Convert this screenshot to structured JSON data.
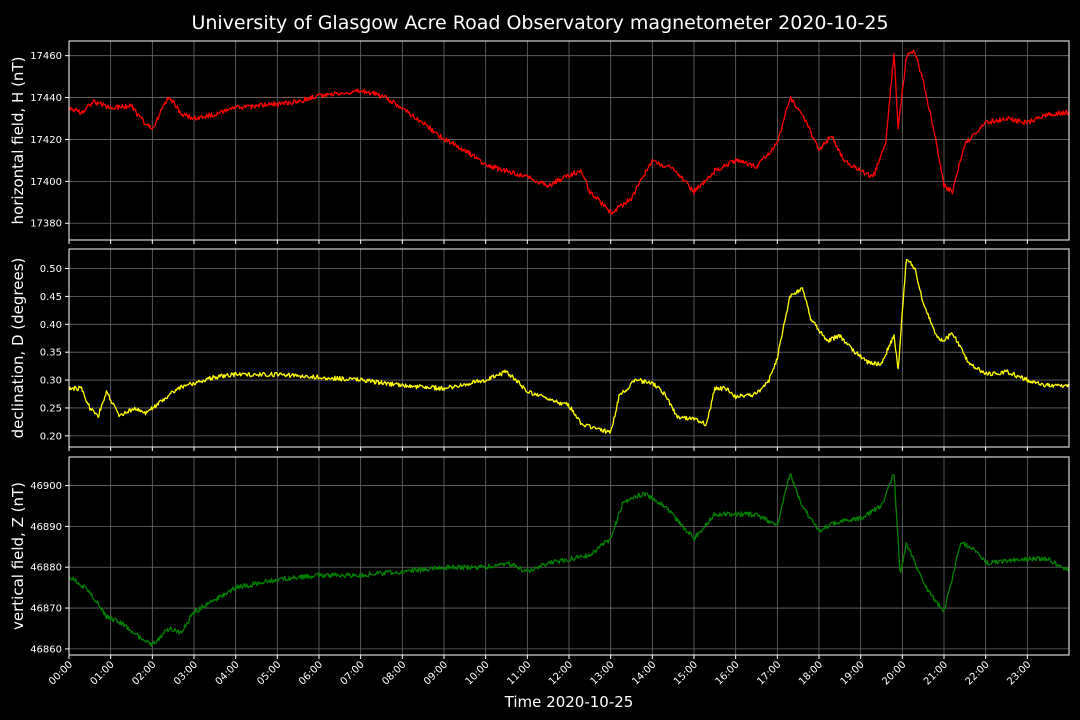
{
  "chart_data": {
    "type": "line",
    "title": "University of Glasgow Acre Road Observatory magnetometer 2020-10-25",
    "xlabel": "Time 2020-10-25",
    "x_ticks": [
      "00:00",
      "01:00",
      "02:00",
      "03:00",
      "04:00",
      "05:00",
      "06:00",
      "07:00",
      "08:00",
      "09:00",
      "10:00",
      "11:00",
      "12:00",
      "13:00",
      "14:00",
      "15:00",
      "16:00",
      "17:00",
      "18:00",
      "19:00",
      "20:00",
      "21:00",
      "22:00",
      "23:00"
    ],
    "xlim": [
      0,
      24
    ],
    "grid": true,
    "panels": [
      {
        "ylabel": "horizontal field, H (nT)",
        "color": "#ff0000",
        "ylim": [
          17372,
          17467
        ],
        "y_ticks": [
          17380,
          17400,
          17420,
          17440,
          17460
        ],
        "decimals": 0,
        "noise": 1.2,
        "points": [
          [
            0,
            17435
          ],
          [
            0.3,
            17433
          ],
          [
            0.6,
            17438
          ],
          [
            1,
            17435
          ],
          [
            1.5,
            17436
          ],
          [
            1.8,
            17428
          ],
          [
            2,
            17425
          ],
          [
            2.2,
            17433
          ],
          [
            2.4,
            17441
          ],
          [
            2.7,
            17432
          ],
          [
            3,
            17430
          ],
          [
            3.5,
            17432
          ],
          [
            4,
            17435
          ],
          [
            5,
            17437
          ],
          [
            5.5,
            17438
          ],
          [
            6,
            17441
          ],
          [
            6.5,
            17442
          ],
          [
            7,
            17443
          ],
          [
            7.3,
            17442
          ],
          [
            7.6,
            17440
          ],
          [
            8,
            17435
          ],
          [
            8.5,
            17428
          ],
          [
            9,
            17420
          ],
          [
            9.5,
            17415
          ],
          [
            10,
            17408
          ],
          [
            10.5,
            17405
          ],
          [
            11,
            17402
          ],
          [
            11.5,
            17398
          ],
          [
            12,
            17403
          ],
          [
            12.3,
            17405
          ],
          [
            12.5,
            17395
          ],
          [
            13,
            17385
          ],
          [
            13.5,
            17392
          ],
          [
            14,
            17410
          ],
          [
            14.5,
            17406
          ],
          [
            15,
            17395
          ],
          [
            15.5,
            17405
          ],
          [
            16,
            17410
          ],
          [
            16.5,
            17407
          ],
          [
            17,
            17418
          ],
          [
            17.3,
            17440
          ],
          [
            17.6,
            17432
          ],
          [
            18,
            17415
          ],
          [
            18.3,
            17422
          ],
          [
            18.6,
            17410
          ],
          [
            19,
            17405
          ],
          [
            19.3,
            17402
          ],
          [
            19.6,
            17418
          ],
          [
            19.8,
            17461
          ],
          [
            19.9,
            17425
          ],
          [
            20.1,
            17460
          ],
          [
            20.3,
            17462
          ],
          [
            20.5,
            17448
          ],
          [
            20.8,
            17420
          ],
          [
            21,
            17398
          ],
          [
            21.2,
            17395
          ],
          [
            21.5,
            17418
          ],
          [
            22,
            17428
          ],
          [
            22.5,
            17430
          ],
          [
            23,
            17428
          ],
          [
            23.5,
            17432
          ],
          [
            24,
            17433
          ]
        ]
      },
      {
        "ylabel": "declination, D (degrees)",
        "color": "#ffff00",
        "ylim": [
          0.18,
          0.535
        ],
        "y_ticks": [
          0.2,
          0.25,
          0.3,
          0.35,
          0.4,
          0.45,
          0.5
        ],
        "decimals": 2,
        "noise": 0.004,
        "points": [
          [
            0,
            0.285
          ],
          [
            0.3,
            0.285
          ],
          [
            0.5,
            0.25
          ],
          [
            0.7,
            0.235
          ],
          [
            0.9,
            0.28
          ],
          [
            1.2,
            0.235
          ],
          [
            1.6,
            0.25
          ],
          [
            1.8,
            0.24
          ],
          [
            2.2,
            0.26
          ],
          [
            2.6,
            0.285
          ],
          [
            3,
            0.295
          ],
          [
            3.5,
            0.305
          ],
          [
            4,
            0.31
          ],
          [
            5,
            0.31
          ],
          [
            6,
            0.305
          ],
          [
            7,
            0.3
          ],
          [
            8,
            0.29
          ],
          [
            9,
            0.285
          ],
          [
            10,
            0.3
          ],
          [
            10.5,
            0.315
          ],
          [
            11,
            0.28
          ],
          [
            11.5,
            0.265
          ],
          [
            12,
            0.255
          ],
          [
            12.3,
            0.22
          ],
          [
            12.8,
            0.21
          ],
          [
            13,
            0.205
          ],
          [
            13.2,
            0.27
          ],
          [
            13.6,
            0.3
          ],
          [
            14,
            0.295
          ],
          [
            14.3,
            0.275
          ],
          [
            14.6,
            0.235
          ],
          [
            15,
            0.23
          ],
          [
            15.3,
            0.22
          ],
          [
            15.5,
            0.285
          ],
          [
            15.8,
            0.285
          ],
          [
            16,
            0.27
          ],
          [
            16.5,
            0.275
          ],
          [
            16.8,
            0.3
          ],
          [
            17,
            0.34
          ],
          [
            17.3,
            0.45
          ],
          [
            17.6,
            0.465
          ],
          [
            17.8,
            0.41
          ],
          [
            18.2,
            0.37
          ],
          [
            18.5,
            0.38
          ],
          [
            18.8,
            0.355
          ],
          [
            19.2,
            0.33
          ],
          [
            19.5,
            0.33
          ],
          [
            19.8,
            0.38
          ],
          [
            19.9,
            0.32
          ],
          [
            20.1,
            0.52
          ],
          [
            20.3,
            0.5
          ],
          [
            20.5,
            0.44
          ],
          [
            20.8,
            0.38
          ],
          [
            21,
            0.37
          ],
          [
            21.2,
            0.385
          ],
          [
            21.6,
            0.33
          ],
          [
            22,
            0.31
          ],
          [
            22.5,
            0.315
          ],
          [
            23,
            0.3
          ],
          [
            23.5,
            0.29
          ],
          [
            24,
            0.29
          ]
        ]
      },
      {
        "ylabel": "vertical field, Z (nT)",
        "color": "#008000",
        "ylim": [
          46858.5,
          46907
        ],
        "y_ticks": [
          46860,
          46870,
          46880,
          46890,
          46900
        ],
        "decimals": 0,
        "noise": 0.6,
        "points": [
          [
            0,
            46878
          ],
          [
            0.5,
            46874
          ],
          [
            0.9,
            46868
          ],
          [
            1.3,
            46866
          ],
          [
            1.8,
            46862
          ],
          [
            2,
            46861
          ],
          [
            2.4,
            46865
          ],
          [
            2.7,
            46864
          ],
          [
            3,
            46869
          ],
          [
            3.5,
            46872
          ],
          [
            4,
            46875
          ],
          [
            5,
            46877
          ],
          [
            6,
            46878
          ],
          [
            7,
            46878
          ],
          [
            8,
            46879
          ],
          [
            9,
            46880
          ],
          [
            10,
            46880
          ],
          [
            10.5,
            46881
          ],
          [
            11,
            46879
          ],
          [
            11.5,
            46881
          ],
          [
            12,
            46882
          ],
          [
            12.5,
            46883
          ],
          [
            13,
            46887
          ],
          [
            13.3,
            46896
          ],
          [
            13.8,
            46898
          ],
          [
            14.3,
            46895
          ],
          [
            15,
            46887
          ],
          [
            15.5,
            46893
          ],
          [
            16,
            46893
          ],
          [
            16.5,
            46893
          ],
          [
            17,
            46890
          ],
          [
            17.3,
            46903
          ],
          [
            17.6,
            46895
          ],
          [
            18,
            46889
          ],
          [
            18.4,
            46891
          ],
          [
            19,
            46892
          ],
          [
            19.5,
            46895
          ],
          [
            19.8,
            46903
          ],
          [
            19.95,
            46878
          ],
          [
            20.1,
            46886
          ],
          [
            20.5,
            46876
          ],
          [
            21,
            46869
          ],
          [
            21.4,
            46886
          ],
          [
            21.8,
            46884
          ],
          [
            22,
            46881
          ],
          [
            23,
            46882
          ],
          [
            23.5,
            46882
          ],
          [
            24,
            46879
          ]
        ]
      }
    ]
  }
}
